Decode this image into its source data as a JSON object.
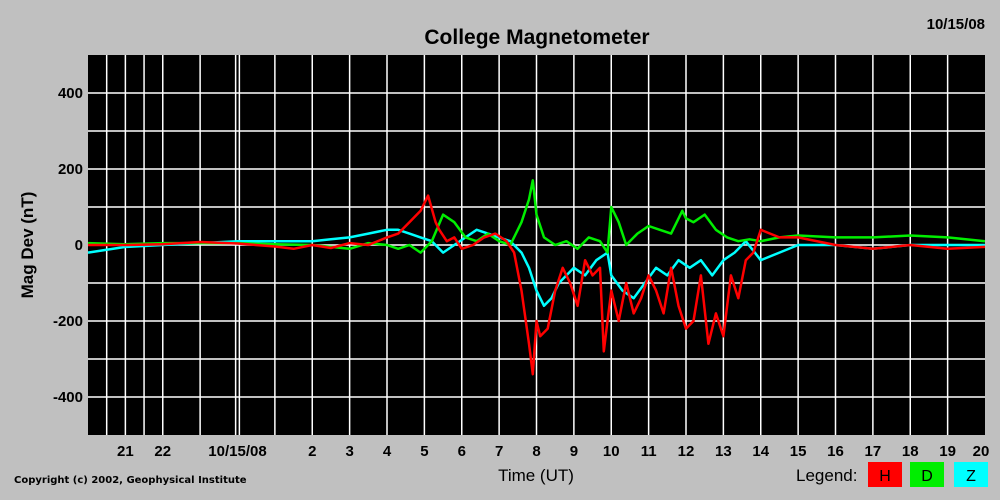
{
  "chart_data": {
    "type": "line",
    "title": "College Magnetometer",
    "date": "10/15/08",
    "xlabel": "Time (UT)",
    "ylabel": "Mag Dev (nT)",
    "ylim": [
      -500,
      500
    ],
    "y_ticks": [
      400,
      200,
      0,
      -200,
      -400
    ],
    "x_ticks": [
      "21",
      "22",
      "10/15/08",
      "2",
      "3",
      "4",
      "5",
      "6",
      "7",
      "8",
      "9",
      "10",
      "11",
      "12",
      "13",
      "14",
      "15",
      "16",
      "17",
      "18",
      "19",
      "20"
    ],
    "x_tick_hours": [
      -3,
      -2,
      0,
      2,
      3,
      4,
      5,
      6,
      7,
      8,
      9,
      10,
      11,
      12,
      13,
      14,
      15,
      16,
      17,
      18,
      19,
      20
    ],
    "xlim_hours": [
      -4.0,
      20.0
    ],
    "grid": true,
    "legend_title": "Legend:",
    "series": [
      {
        "name": "H",
        "color": "#ff0000",
        "x": [
          -4,
          -3,
          -2,
          -1,
          0,
          1,
          1.5,
          2,
          2.5,
          3,
          3.5,
          4,
          4.3,
          4.6,
          4.9,
          5.1,
          5.3,
          5.4,
          5.6,
          5.8,
          6,
          6.3,
          6.6,
          6.9,
          7.2,
          7.4,
          7.6,
          7.8,
          7.9,
          8.0,
          8.1,
          8.3,
          8.5,
          8.7,
          8.9,
          9.1,
          9.3,
          9.5,
          9.7,
          9.8,
          9.9,
          10.0,
          10.2,
          10.4,
          10.6,
          10.8,
          11.0,
          11.2,
          11.4,
          11.6,
          11.8,
          12.0,
          12.2,
          12.4,
          12.6,
          12.8,
          13.0,
          13.2,
          13.4,
          13.6,
          13.8,
          14.0,
          14.5,
          15,
          16,
          17,
          18,
          19,
          20
        ],
        "values": [
          0,
          0,
          2,
          8,
          4,
          -4,
          -10,
          0,
          -8,
          5,
          0,
          20,
          30,
          60,
          90,
          130,
          60,
          40,
          10,
          20,
          -10,
          0,
          20,
          30,
          10,
          -20,
          -120,
          -260,
          -340,
          -200,
          -240,
          -220,
          -120,
          -60,
          -100,
          -160,
          -40,
          -80,
          -60,
          -280,
          -200,
          -120,
          -200,
          -100,
          -180,
          -140,
          -80,
          -120,
          -180,
          -60,
          -160,
          -220,
          -200,
          -80,
          -260,
          -180,
          -240,
          -80,
          -140,
          -40,
          -20,
          40,
          20,
          20,
          0,
          -10,
          0,
          -10,
          -5
        ]
      },
      {
        "name": "D",
        "color": "#00ee00",
        "x": [
          -4,
          -3,
          -2,
          -1,
          0,
          1,
          2,
          2.5,
          3,
          3.5,
          4,
          4.3,
          4.6,
          4.9,
          5.2,
          5.5,
          5.8,
          6.1,
          6.4,
          6.7,
          7.0,
          7.3,
          7.6,
          7.8,
          7.9,
          8.0,
          8.2,
          8.5,
          8.8,
          9.1,
          9.4,
          9.7,
          9.9,
          10.0,
          10.2,
          10.4,
          10.7,
          11.0,
          11.3,
          11.6,
          11.9,
          12.0,
          12.2,
          12.5,
          12.8,
          13.1,
          13.4,
          13.7,
          14,
          14.5,
          15,
          16,
          17,
          18,
          19,
          20
        ],
        "values": [
          5,
          2,
          5,
          5,
          5,
          2,
          0,
          -5,
          -10,
          5,
          0,
          -10,
          0,
          -20,
          10,
          80,
          60,
          20,
          10,
          30,
          10,
          0,
          60,
          120,
          170,
          80,
          20,
          0,
          10,
          -10,
          20,
          10,
          -20,
          100,
          60,
          0,
          30,
          50,
          40,
          30,
          90,
          70,
          60,
          80,
          40,
          20,
          10,
          15,
          10,
          20,
          25,
          20,
          20,
          25,
          20,
          10
        ]
      },
      {
        "name": "Z",
        "color": "#00ffff",
        "x": [
          -4,
          -3,
          -2,
          -1,
          0,
          1,
          2,
          2.5,
          3,
          3.5,
          4,
          4.3,
          4.6,
          4.9,
          5.2,
          5.5,
          5.8,
          6.1,
          6.4,
          6.7,
          7.0,
          7.3,
          7.6,
          7.8,
          8.0,
          8.2,
          8.4,
          8.6,
          8.8,
          9.0,
          9.3,
          9.6,
          9.9,
          10.0,
          10.3,
          10.6,
          10.9,
          11.2,
          11.5,
          11.8,
          12.1,
          12.4,
          12.7,
          13.0,
          13.3,
          13.6,
          14,
          14.5,
          15,
          16,
          17,
          18,
          19,
          20
        ],
        "values": [
          -20,
          -5,
          0,
          5,
          10,
          10,
          10,
          15,
          20,
          30,
          40,
          40,
          30,
          20,
          10,
          -20,
          0,
          20,
          40,
          30,
          20,
          10,
          -20,
          -60,
          -120,
          -160,
          -140,
          -100,
          -80,
          -60,
          -80,
          -40,
          -20,
          -80,
          -120,
          -140,
          -100,
          -60,
          -80,
          -40,
          -60,
          -40,
          -80,
          -40,
          -20,
          10,
          -40,
          -20,
          0,
          0,
          -10,
          0,
          0,
          0
        ]
      }
    ]
  },
  "copyright": "Copyright (c) 2002, Geophysical Institute"
}
